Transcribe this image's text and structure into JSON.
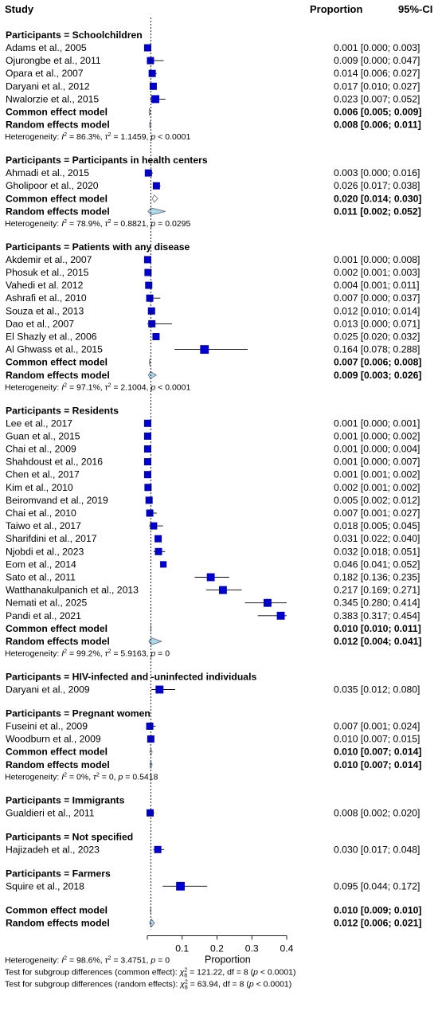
{
  "header": {
    "study": "Study",
    "proportion": "Proportion",
    "ci": "95%-CI"
  },
  "colors": {
    "square": "#0000cc",
    "diamond": "#add8e6",
    "line": "#000000"
  },
  "chart_data": {
    "type": "forest",
    "title": "",
    "xlabel": "Proportion",
    "xlim": [
      0,
      0.4
    ],
    "xticks": [
      0.1,
      0.2,
      0.3,
      0.4
    ],
    "xtick_labels": [
      "0.1",
      "0.2",
      "0.3",
      "0.4"
    ],
    "reference_line": 0.01,
    "subgroups": [
      {
        "label": "Participants = Schoolchildren",
        "studies": [
          {
            "study": "Adams et al., 2005",
            "est": 0.001,
            "lo": 0.0,
            "hi": 0.003,
            "text": "0.001 [0.000; 0.003]",
            "weight": 1.0
          },
          {
            "study": "Ojurongbe et al., 2011",
            "est": 0.009,
            "lo": 0.0,
            "hi": 0.047,
            "text": "0.009 [0.000; 0.047]",
            "weight": 1.0
          },
          {
            "study": "Opara et al., 2007",
            "est": 0.014,
            "lo": 0.006,
            "hi": 0.027,
            "text": "0.014 [0.006; 0.027]",
            "weight": 1.0
          },
          {
            "study": "Daryani et al., 2012",
            "est": 0.017,
            "lo": 0.01,
            "hi": 0.027,
            "text": "0.017 [0.010; 0.027]",
            "weight": 1.0
          },
          {
            "study": "Nwalorzie et al., 2015",
            "est": 0.023,
            "lo": 0.007,
            "hi": 0.052,
            "text": "0.023 [0.007; 0.052]",
            "weight": 1.1
          }
        ],
        "common": {
          "label": "Common effect model",
          "est": 0.006,
          "lo": 0.005,
          "hi": 0.009,
          "text": "0.006 [0.005; 0.009]"
        },
        "random": {
          "label": "Random effects model",
          "est": 0.008,
          "lo": 0.006,
          "hi": 0.011,
          "text": "0.008 [0.006; 0.011]"
        },
        "heterogeneity": {
          "pre": "Heterogeneity: ",
          "i2": "I",
          "i2_val": " = 86.3%, ",
          "tau": "τ",
          "tau_val": " = 1.1459, ",
          "p": "p",
          "p_val": " < 0.0001"
        }
      },
      {
        "label": "Participants = Participants in health centers",
        "studies": [
          {
            "study": "Ahmadi et al., 2015",
            "est": 0.003,
            "lo": 0.0,
            "hi": 0.016,
            "text": "0.003 [0.000; 0.016]",
            "weight": 1.0
          },
          {
            "study": "Gholipoor et al., 2020",
            "est": 0.026,
            "lo": 0.017,
            "hi": 0.038,
            "text": "0.026 [0.017; 0.038]",
            "weight": 1.0
          }
        ],
        "common": {
          "label": "Common effect model",
          "est": 0.02,
          "lo": 0.014,
          "hi": 0.03,
          "text": "0.020 [0.014; 0.030]"
        },
        "random": {
          "label": "Random effects model",
          "est": 0.011,
          "lo": 0.002,
          "hi": 0.052,
          "text": "0.011 [0.002; 0.052]"
        },
        "heterogeneity": {
          "pre": "Heterogeneity: ",
          "i2": "I",
          "i2_val": " = 78.9%, ",
          "tau": "τ",
          "tau_val": " = 0.8821, ",
          "p": "p",
          "p_val": " = 0.0295"
        }
      },
      {
        "label": "Participants = Patients with any disease",
        "studies": [
          {
            "study": "Akdemir et al., 2007",
            "est": 0.001,
            "lo": 0.0,
            "hi": 0.008,
            "text": "0.001 [0.000; 0.008]",
            "weight": 1.0
          },
          {
            "study": "Phosuk et al., 2015",
            "est": 0.002,
            "lo": 0.001,
            "hi": 0.003,
            "text": "0.002 [0.001; 0.003]",
            "weight": 1.0
          },
          {
            "study": "Vahedi  et al. 2012",
            "est": 0.004,
            "lo": 0.001,
            "hi": 0.011,
            "text": "0.004 [0.001; 0.011]",
            "weight": 1.0
          },
          {
            "study": "Ashrafi et al., 2010",
            "est": 0.007,
            "lo": 0.0,
            "hi": 0.037,
            "text": "0.007 [0.000; 0.037]",
            "weight": 1.0
          },
          {
            "study": "Souza et al., 2013",
            "est": 0.012,
            "lo": 0.01,
            "hi": 0.014,
            "text": "0.012 [0.010; 0.014]",
            "weight": 1.0
          },
          {
            "study": "Dao et al., 2007",
            "est": 0.013,
            "lo": 0.0,
            "hi": 0.071,
            "text": "0.013 [0.000; 0.071]",
            "weight": 1.0
          },
          {
            "study": "El Shazly et al., 2006",
            "est": 0.025,
            "lo": 0.02,
            "hi": 0.032,
            "text": "0.025 [0.020; 0.032]",
            "weight": 1.0
          },
          {
            "study": "Al Ghwass et al., 2015",
            "est": 0.164,
            "lo": 0.078,
            "hi": 0.288,
            "text": "0.164 [0.078; 0.288]",
            "weight": 1.2
          }
        ],
        "common": {
          "label": "Common effect model",
          "est": 0.007,
          "lo": 0.006,
          "hi": 0.008,
          "text": "0.007 [0.006; 0.008]"
        },
        "random": {
          "label": "Random effects model",
          "est": 0.009,
          "lo": 0.003,
          "hi": 0.026,
          "text": "0.009 [0.003; 0.026]"
        },
        "heterogeneity": {
          "pre": "Heterogeneity: ",
          "i2": "I",
          "i2_val": " = 97.1%, ",
          "tau": "τ",
          "tau_val": " = 2.1004, ",
          "p": "p",
          "p_val": " < 0.0001"
        }
      },
      {
        "label": "Participants = Residents",
        "studies": [
          {
            "study": "Lee et al., 2017",
            "est": 0.001,
            "lo": 0.0,
            "hi": 0.001,
            "text": "0.001 [0.000; 0.001]",
            "weight": 1.0
          },
          {
            "study": "Guan et al., 2015",
            "est": 0.001,
            "lo": 0.0,
            "hi": 0.002,
            "text": "0.001 [0.000; 0.002]",
            "weight": 1.0
          },
          {
            "study": "Chai et al., 2009",
            "est": 0.001,
            "lo": 0.0,
            "hi": 0.004,
            "text": "0.001 [0.000; 0.004]",
            "weight": 1.0
          },
          {
            "study": "Shahdoust et al., 2016",
            "est": 0.001,
            "lo": 0.0,
            "hi": 0.007,
            "text": "0.001 [0.000; 0.007]",
            "weight": 1.0
          },
          {
            "study": "Chen et al., 2017",
            "est": 0.001,
            "lo": 0.001,
            "hi": 0.002,
            "text": "0.001 [0.001; 0.002]",
            "weight": 1.0
          },
          {
            "study": "Kim et al., 2010",
            "est": 0.002,
            "lo": 0.001,
            "hi": 0.002,
            "text": "0.002 [0.001; 0.002]",
            "weight": 1.0
          },
          {
            "study": "Beiromvand et al., 2019",
            "est": 0.005,
            "lo": 0.002,
            "hi": 0.012,
            "text": "0.005 [0.002; 0.012]",
            "weight": 1.0
          },
          {
            "study": "Chai et al., 2010",
            "est": 0.007,
            "lo": 0.001,
            "hi": 0.027,
            "text": "0.007 [0.001; 0.027]",
            "weight": 1.0
          },
          {
            "study": "Taiwo et al., 2017",
            "est": 0.018,
            "lo": 0.005,
            "hi": 0.045,
            "text": "0.018 [0.005; 0.045]",
            "weight": 1.0
          },
          {
            "study": "Sharifdini et al., 2017",
            "est": 0.031,
            "lo": 0.022,
            "hi": 0.04,
            "text": "0.031 [0.022; 0.040]",
            "weight": 1.0
          },
          {
            "study": "Njobdi et al., 2023",
            "est": 0.032,
            "lo": 0.018,
            "hi": 0.051,
            "text": "0.032 [0.018; 0.051]",
            "weight": 1.0
          },
          {
            "study": "Eom et al., 2014",
            "est": 0.046,
            "lo": 0.041,
            "hi": 0.052,
            "text": "0.046 [0.041; 0.052]",
            "weight": 0.9
          },
          {
            "study": "Sato et al., 2011",
            "est": 0.182,
            "lo": 0.136,
            "hi": 0.235,
            "text": "0.182 [0.136; 0.235]",
            "weight": 1.1
          },
          {
            "study": "Watthanakulpanich et al., 2013",
            "est": 0.217,
            "lo": 0.169,
            "hi": 0.271,
            "text": "0.217 [0.169; 0.271]",
            "weight": 1.1
          },
          {
            "study": "Nemati et al., 2025",
            "est": 0.345,
            "lo": 0.28,
            "hi": 0.414,
            "text": "0.345 [0.280; 0.414]",
            "weight": 1.1
          },
          {
            "study": "Pandi et al., 2021",
            "est": 0.383,
            "lo": 0.317,
            "hi": 0.454,
            "text": "0.383 [0.317; 0.454]",
            "weight": 1.1
          }
        ],
        "common": {
          "label": "Common effect model",
          "est": 0.01,
          "lo": 0.01,
          "hi": 0.011,
          "text": "0.010 [0.010; 0.011]"
        },
        "random": {
          "label": "Random effects model",
          "est": 0.012,
          "lo": 0.004,
          "hi": 0.041,
          "text": "0.012 [0.004; 0.041]"
        },
        "heterogeneity": {
          "pre": "Heterogeneity: ",
          "i2": "I",
          "i2_val": " = 99.2%, ",
          "tau": "τ",
          "tau_val": " = 5.9163, ",
          "p": "p",
          "p_val": " = 0"
        }
      },
      {
        "label": "Participants = HIV-infected and -uninfected individuals",
        "studies": [
          {
            "study": "Daryani et al., 2009",
            "est": 0.035,
            "lo": 0.012,
            "hi": 0.08,
            "text": "0.035 [0.012; 0.080]",
            "weight": 1.1
          }
        ]
      },
      {
        "label": "Participants = Pregnant women",
        "studies": [
          {
            "study": "Fuseini et al., 2009",
            "est": 0.007,
            "lo": 0.001,
            "hi": 0.024,
            "text": "0.007 [0.001; 0.024]",
            "weight": 1.0
          },
          {
            "study": "Woodburn et al., 2009",
            "est": 0.01,
            "lo": 0.007,
            "hi": 0.015,
            "text": "0.010 [0.007; 0.015]",
            "weight": 1.0
          }
        ],
        "common": {
          "label": "Common effect model",
          "est": 0.01,
          "lo": 0.007,
          "hi": 0.014,
          "text": "0.010 [0.007; 0.014]"
        },
        "random": {
          "label": "Random effects model",
          "est": 0.01,
          "lo": 0.007,
          "hi": 0.014,
          "text": "0.010 [0.007; 0.014]"
        },
        "heterogeneity": {
          "pre": "Heterogeneity: ",
          "i2": "I",
          "i2_val": " = 0%, ",
          "tau": "τ",
          "tau_val": " = 0, ",
          "p": "p",
          "p_val": " = 0.5418"
        }
      },
      {
        "label": "Participants = Immigrants",
        "studies": [
          {
            "study": "Gualdieri et al., 2011",
            "est": 0.008,
            "lo": 0.002,
            "hi": 0.02,
            "text": "0.008 [0.002; 0.020]",
            "weight": 1.0
          }
        ]
      },
      {
        "label": "Participants = Not specified",
        "studies": [
          {
            "study": "Hajizadeh et al., 2023",
            "est": 0.03,
            "lo": 0.017,
            "hi": 0.048,
            "text": "0.030 [0.017; 0.048]",
            "weight": 1.0
          }
        ]
      },
      {
        "label": "Participants = Farmers",
        "studies": [
          {
            "study": "Squire et al., 2018",
            "est": 0.095,
            "lo": 0.044,
            "hi": 0.172,
            "text": "0.095 [0.044; 0.172]",
            "weight": 1.2
          }
        ]
      }
    ],
    "overall": {
      "common": {
        "label": "Common effect model",
        "est": 0.01,
        "lo": 0.009,
        "hi": 0.01,
        "text": "0.010 [0.009; 0.010]"
      },
      "random": {
        "label": "Random effects model",
        "est": 0.012,
        "lo": 0.006,
        "hi": 0.021,
        "text": "0.012 [0.006; 0.021]"
      },
      "heterogeneity": {
        "pre": "Heterogeneity: ",
        "i2": "I",
        "i2_val": " = 98.6%, ",
        "tau": "τ",
        "tau_val": " = 3.4751, ",
        "p": "p",
        "p_val": " = 0"
      },
      "subgroup_tests": [
        {
          "pre": "Test for subgroup differences (common effect): ",
          "chi": "χ",
          "sub": "8",
          "val": " = 121.22, df = 8 (",
          "p": "p",
          "post": " < 0.0001)"
        },
        {
          "pre": "Test for subgroup differences (random effects): ",
          "chi": "χ",
          "sub": "8",
          "val": " = 63.94, df = 8 (",
          "p": "p",
          "post": " < 0.0001)"
        }
      ]
    }
  }
}
